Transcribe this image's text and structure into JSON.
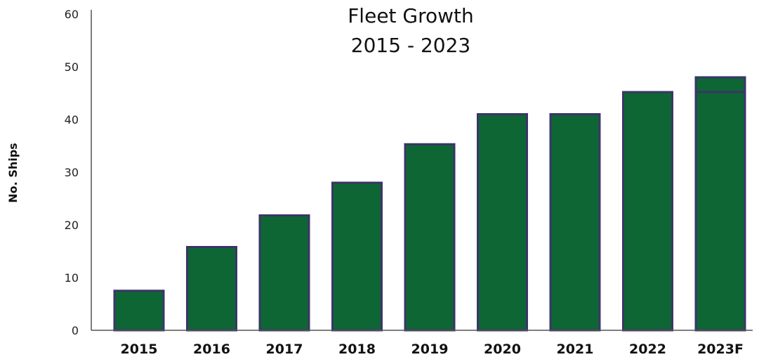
{
  "chart_data": {
    "type": "bar",
    "title_lines": [
      "Fleet Growth",
      "2015 - 2023"
    ],
    "xlabel": "",
    "ylabel": "No. Ships",
    "categories": [
      "2015",
      "2016",
      "2017",
      "2018",
      "2019",
      "2020",
      "2021",
      "2022",
      "2023F"
    ],
    "values": [
      7.5,
      15.8,
      21.8,
      28,
      35.3,
      41,
      41,
      45.2,
      48
    ],
    "forecast_marker": {
      "category": "2023F",
      "value": 45.2
    },
    "ylim": [
      0,
      60
    ],
    "yticks": [
      0,
      10,
      20,
      30,
      40,
      50,
      60
    ],
    "grid": false,
    "legend": "none",
    "colors": {
      "bar_fill": "#0e6635",
      "bar_stroke": "#3b3568"
    }
  }
}
